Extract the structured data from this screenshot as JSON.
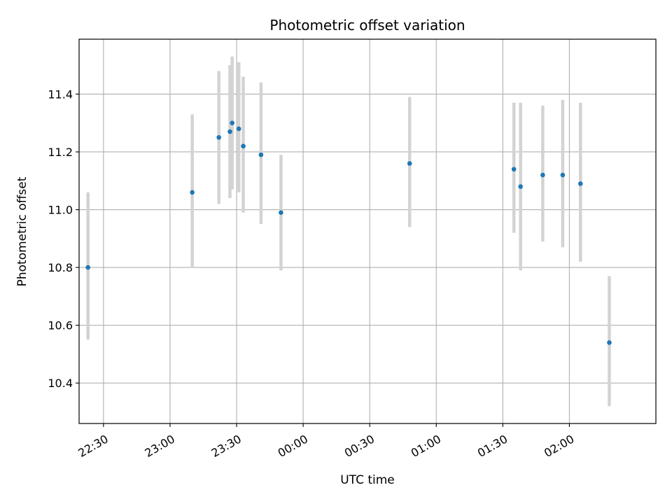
{
  "chart_data": {
    "type": "scatter",
    "title": "Photometric offset variation",
    "xlabel": "UTC time",
    "ylabel": "Photometric offset",
    "x_ticks": [
      "22:30",
      "23:00",
      "23:30",
      "00:00",
      "00:30",
      "01:00",
      "01:30",
      "02:00"
    ],
    "y_ticks": [
      "10.4",
      "10.6",
      "10.8",
      "11.0",
      "11.2",
      "11.4"
    ],
    "ylim": [
      10.26,
      11.59
    ],
    "xlim": [
      "22:19",
      "02:39"
    ],
    "grid": true,
    "errorbar_color": "#d3d3d3",
    "marker_color": "#1f77b4",
    "points": [
      {
        "x": "22:23",
        "y": 10.8,
        "err_low": 10.55,
        "err_high": 11.06
      },
      {
        "x": "23:10",
        "y": 11.06,
        "err_low": 10.8,
        "err_high": 11.33
      },
      {
        "x": "23:22",
        "y": 11.25,
        "err_low": 11.02,
        "err_high": 11.48
      },
      {
        "x": "23:27",
        "y": 11.27,
        "err_low": 11.04,
        "err_high": 11.5
      },
      {
        "x": "23:28",
        "y": 11.3,
        "err_low": 11.07,
        "err_high": 11.53
      },
      {
        "x": "23:31",
        "y": 11.28,
        "err_low": 11.06,
        "err_high": 11.51
      },
      {
        "x": "23:33",
        "y": 11.22,
        "err_low": 10.99,
        "err_high": 11.46
      },
      {
        "x": "23:41",
        "y": 11.19,
        "err_low": 10.95,
        "err_high": 11.44
      },
      {
        "x": "23:50",
        "y": 10.99,
        "err_low": 10.79,
        "err_high": 11.19
      },
      {
        "x": "00:48",
        "y": 11.16,
        "err_low": 10.94,
        "err_high": 11.39
      },
      {
        "x": "01:35",
        "y": 11.14,
        "err_low": 10.92,
        "err_high": 11.37
      },
      {
        "x": "01:38",
        "y": 11.08,
        "err_low": 10.79,
        "err_high": 11.37
      },
      {
        "x": "01:48",
        "y": 11.12,
        "err_low": 10.89,
        "err_high": 11.36
      },
      {
        "x": "01:57",
        "y": 11.12,
        "err_low": 10.87,
        "err_high": 11.38
      },
      {
        "x": "02:05",
        "y": 11.09,
        "err_low": 10.82,
        "err_high": 11.37
      },
      {
        "x": "02:18",
        "y": 10.54,
        "err_low": 10.32,
        "err_high": 10.77
      }
    ]
  }
}
